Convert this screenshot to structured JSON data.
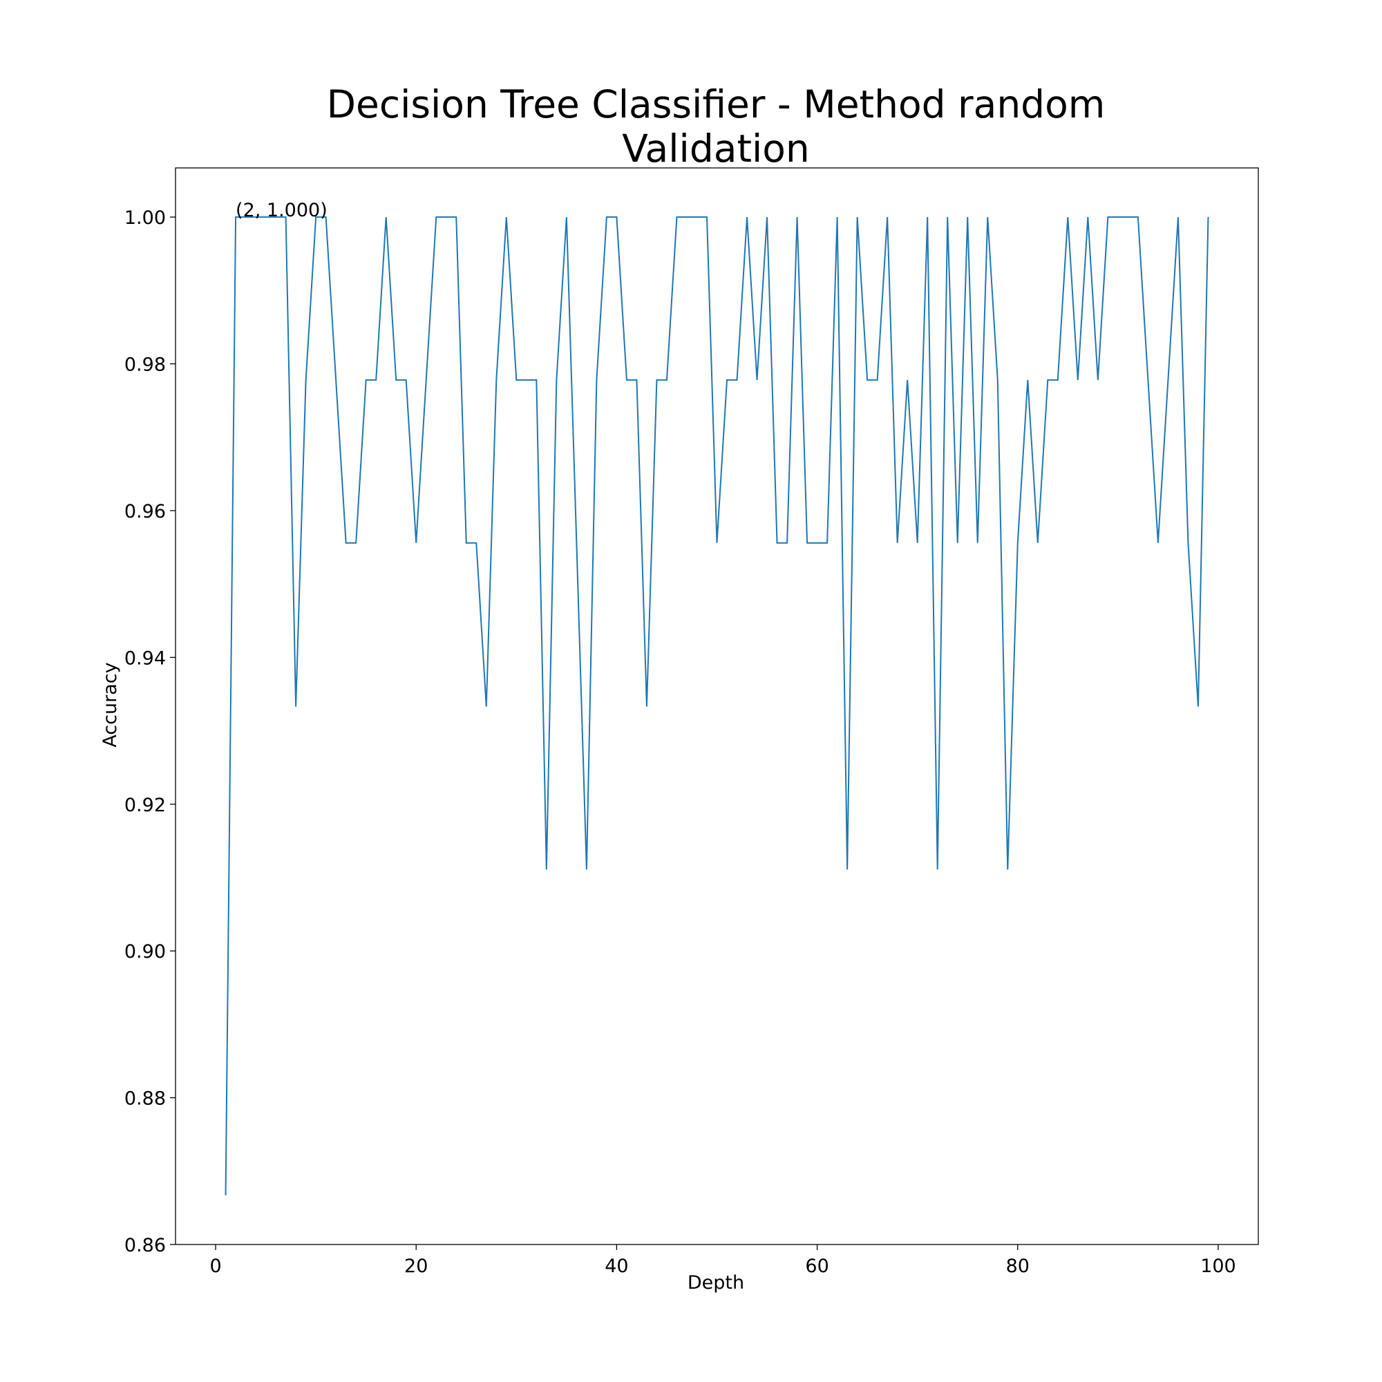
{
  "chart_data": {
    "type": "line",
    "title_line1": "Decision Tree Classifier - Method random",
    "title_line2": "Validation",
    "xlabel": "Depth",
    "ylabel": "Accuracy",
    "xlim": [
      -4,
      104
    ],
    "ylim": [
      0.86,
      1.0067
    ],
    "xticks": [
      0,
      20,
      40,
      60,
      80,
      100
    ],
    "yticks": [
      0.86,
      0.88,
      0.9,
      0.92,
      0.94,
      0.96,
      0.98,
      1.0
    ],
    "ytick_labels": [
      "0.86",
      "0.88",
      "0.90",
      "0.92",
      "0.94",
      "0.96",
      "0.98",
      "1.00"
    ],
    "grid": false,
    "colors": {
      "line": "#1f77b4",
      "axes": "#000000"
    },
    "annotation": {
      "text": "(2, 1.000)",
      "x": 2,
      "y": 1.0
    },
    "series": [
      {
        "x": [
          1,
          2,
          3,
          4,
          5,
          6,
          7,
          8,
          9,
          10,
          11,
          12,
          13,
          14,
          15,
          16,
          17,
          18,
          19,
          20,
          21,
          22,
          23,
          24,
          25,
          26,
          27,
          28,
          29,
          30,
          31,
          32,
          33,
          34,
          35,
          36,
          37,
          38,
          39,
          40,
          41,
          42,
          43,
          44,
          45,
          46,
          47,
          48,
          49,
          50,
          51,
          52,
          53,
          54,
          55,
          56,
          57,
          58,
          59,
          60,
          61,
          62,
          63,
          64,
          65,
          66,
          67,
          68,
          69,
          70,
          71,
          72,
          73,
          74,
          75,
          76,
          77,
          78,
          79,
          80,
          81,
          82,
          83,
          84,
          85,
          86,
          87,
          88,
          89,
          90,
          91,
          92,
          93,
          94,
          95,
          96,
          97,
          98,
          99
        ],
        "y": [
          0.8667,
          1.0,
          1.0,
          1.0,
          1.0,
          1.0,
          1.0,
          0.9333,
          0.9778,
          1.0,
          1.0,
          0.9778,
          0.9556,
          0.9556,
          0.9778,
          0.9778,
          1.0,
          0.9778,
          0.9778,
          0.9556,
          0.9778,
          1.0,
          1.0,
          1.0,
          0.9556,
          0.9556,
          0.9333,
          0.9778,
          1.0,
          0.9778,
          0.9778,
          0.9778,
          0.9111,
          0.9778,
          1.0,
          0.9556,
          0.9111,
          0.9778,
          1.0,
          1.0,
          0.9778,
          0.9778,
          0.9333,
          0.9778,
          0.9778,
          1.0,
          1.0,
          1.0,
          1.0,
          0.9556,
          0.9778,
          0.9778,
          1.0,
          0.9778,
          1.0,
          0.9556,
          0.9556,
          1.0,
          0.9556,
          0.9556,
          0.9556,
          1.0,
          0.9111,
          1.0,
          0.9778,
          0.9778,
          1.0,
          0.9556,
          0.9778,
          0.9556,
          1.0,
          0.9111,
          1.0,
          0.9556,
          1.0,
          0.9556,
          1.0,
          0.9778,
          0.9111,
          0.9556,
          0.9778,
          0.9556,
          0.9778,
          0.9778,
          1.0,
          0.9778,
          1.0,
          0.9778,
          1.0,
          1.0,
          1.0,
          1.0,
          0.9778,
          0.9556,
          0.9778,
          1.0,
          0.9556,
          0.9333,
          1.0
        ]
      }
    ]
  }
}
